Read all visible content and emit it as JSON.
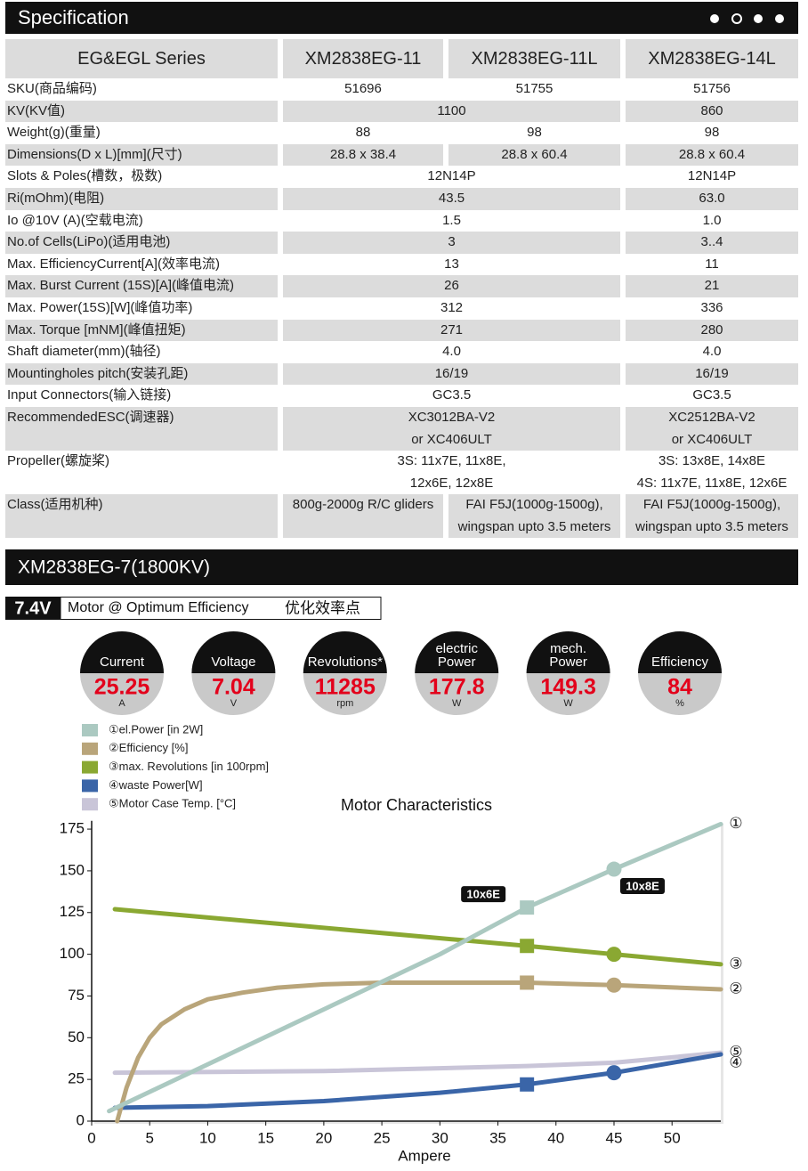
{
  "header": {
    "title": "Specification"
  },
  "table": {
    "header": [
      "EG&EGL Series",
      "XM2838EG-11",
      "XM2838EG-11L",
      "XM2838EG-14L"
    ],
    "rows": [
      {
        "label": "SKU(商品编码)",
        "cells": [
          {
            "lines": [
              "51696"
            ]
          },
          {
            "lines": [
              "51755"
            ]
          },
          {
            "lines": [
              "51756"
            ]
          }
        ]
      },
      {
        "label": "KV(KV值)",
        "cells": [
          {
            "lines": [
              "1100"
            ],
            "span": 2
          },
          {
            "lines": [
              "860"
            ]
          }
        ]
      },
      {
        "label": "Weight(g)(重量)",
        "cells": [
          {
            "lines": [
              "88"
            ]
          },
          {
            "lines": [
              "98"
            ]
          },
          {
            "lines": [
              "98"
            ]
          }
        ]
      },
      {
        "label": "Dimensions(D x L)[mm](尺寸)",
        "cells": [
          {
            "lines": [
              "28.8 x 38.4"
            ]
          },
          {
            "lines": [
              "28.8 x 60.4"
            ]
          },
          {
            "lines": [
              "28.8 x 60.4"
            ]
          }
        ]
      },
      {
        "label": "Slots & Poles(槽数，极数)",
        "cells": [
          {
            "lines": [
              "12N14P"
            ],
            "span": 2
          },
          {
            "lines": [
              "12N14P"
            ]
          }
        ]
      },
      {
        "label": "Ri(mOhm)(电阻)",
        "cells": [
          {
            "lines": [
              "43.5"
            ],
            "span": 2
          },
          {
            "lines": [
              "63.0"
            ]
          }
        ]
      },
      {
        "label": "Io @10V (A)(空载电流)",
        "cells": [
          {
            "lines": [
              "1.5"
            ],
            "span": 2
          },
          {
            "lines": [
              "1.0"
            ]
          }
        ]
      },
      {
        "label": "No.of Cells(LiPo)(适用电池)",
        "cells": [
          {
            "lines": [
              "3"
            ],
            "span": 2
          },
          {
            "lines": [
              "3..4"
            ]
          }
        ]
      },
      {
        "label": "Max. EfficiencyCurrent[A](效率电流)",
        "cells": [
          {
            "lines": [
              "13"
            ],
            "span": 2
          },
          {
            "lines": [
              "11"
            ]
          }
        ]
      },
      {
        "label": "Max. Burst Current (15S)[A](峰值电流)",
        "cells": [
          {
            "lines": [
              "26"
            ],
            "span": 2
          },
          {
            "lines": [
              "21"
            ]
          }
        ]
      },
      {
        "label": "Max. Power(15S)[W](峰值功率)",
        "cells": [
          {
            "lines": [
              "312"
            ],
            "span": 2
          },
          {
            "lines": [
              "336"
            ]
          }
        ]
      },
      {
        "label": "Max. Torque [mNM](峰值扭矩)",
        "cells": [
          {
            "lines": [
              "271"
            ],
            "span": 2
          },
          {
            "lines": [
              "280"
            ]
          }
        ]
      },
      {
        "label": "Shaft diameter(mm)(轴径)",
        "cells": [
          {
            "lines": [
              "4.0"
            ],
            "span": 2
          },
          {
            "lines": [
              "4.0"
            ]
          }
        ]
      },
      {
        "label": "Mountingholes pitch(安装孔距)",
        "cells": [
          {
            "lines": [
              "16/19"
            ],
            "span": 2
          },
          {
            "lines": [
              "16/19"
            ]
          }
        ]
      },
      {
        "label": "Input Connectors(输入链接)",
        "cells": [
          {
            "lines": [
              "GC3.5"
            ],
            "span": 2
          },
          {
            "lines": [
              "GC3.5"
            ]
          }
        ]
      },
      {
        "label": "RecommendedESC(调速器)",
        "cells": [
          {
            "lines": [
              "XC3012BA-V2",
              "or XC406ULT"
            ],
            "span": 2
          },
          {
            "lines": [
              "XC2512BA-V2",
              "or XC406ULT"
            ]
          }
        ]
      },
      {
        "label": "Propeller(螺旋桨)",
        "cells": [
          {
            "lines": [
              "3S: 11x7E, 11x8E,",
              "12x6E, 12x8E"
            ],
            "span": 2
          },
          {
            "lines": [
              "3S: 13x8E, 14x8E",
              "4S: 11x7E, 11x8E, 12x6E"
            ]
          }
        ]
      },
      {
        "label": "Class(适用机种)",
        "cells": [
          {
            "lines": [
              "800g-2000g R/C gliders"
            ]
          },
          {
            "lines": [
              "FAI F5J(1000g-1500g),",
              "wingspan upto 3.5 meters"
            ]
          },
          {
            "lines": [
              "FAI F5J(1000g-1500g),",
              "wingspan upto 3.5 meters"
            ]
          }
        ]
      }
    ]
  },
  "section": {
    "title": "XM2838EG-7(1800KV)",
    "voltage": "7.4V",
    "subtitle": "Motor @ Optimum Efficiency",
    "subtitle_cn": "优化效率点"
  },
  "gauges": [
    {
      "label": [
        "Current"
      ],
      "value": "25.25",
      "unit": "A"
    },
    {
      "label": [
        "Voltage"
      ],
      "value": "7.04",
      "unit": "V"
    },
    {
      "label": [
        "Revolutions*"
      ],
      "value": "11285",
      "unit": "rpm"
    },
    {
      "label": [
        "electric",
        "Power"
      ],
      "value": "177.8",
      "unit": "W"
    },
    {
      "label": [
        "mech.",
        "Power"
      ],
      "value": "149.3",
      "unit": "W"
    },
    {
      "label": [
        "Efficiency"
      ],
      "value": "84",
      "unit": "%"
    }
  ],
  "chart_data": {
    "type": "line",
    "title": "Motor Characteristics",
    "x_label": "Ampere",
    "xlim": [
      0,
      54.2
    ],
    "xticks": [
      0,
      5,
      10,
      15,
      20,
      25,
      30,
      35,
      40,
      45,
      50
    ],
    "ylim": [
      0,
      180
    ],
    "yticks": [
      0,
      25,
      50,
      75,
      100,
      125,
      150,
      175
    ],
    "series": [
      {
        "name": "①el.Power [in 2W]",
        "end_label": "①",
        "color": "#abc9c1",
        "x": [
          1.5,
          10,
          20,
          30,
          37.5,
          45,
          54.2
        ],
        "values": [
          6,
          34,
          67,
          100,
          128,
          151,
          178
        ]
      },
      {
        "name": "②Efficiency [%]",
        "end_label": "②",
        "color": "#b9a57a",
        "x": [
          2.2,
          3,
          4,
          5,
          6,
          8,
          10,
          13,
          16,
          20,
          25,
          30,
          37.5,
          45,
          54.2
        ],
        "values": [
          0,
          20,
          38,
          50,
          58,
          67,
          73,
          77,
          80,
          82,
          83,
          83,
          83,
          81.5,
          79
        ]
      },
      {
        "name": "③max. Revolutions [in 100rpm]",
        "end_label": "③",
        "color": "#8aa832",
        "x": [
          2,
          37.5,
          45,
          54.2
        ],
        "values": [
          127,
          105,
          100,
          94
        ]
      },
      {
        "name": "④waste Power[W]",
        "end_label": "④",
        "color": "#3a65a8",
        "x": [
          2,
          10,
          20,
          30,
          37.5,
          45,
          54.2
        ],
        "values": [
          8,
          9,
          12,
          17,
          22,
          29,
          40
        ]
      },
      {
        "name": "⑤Motor Case Temp. [°C]",
        "end_label": "⑤",
        "color": "#c9c5d8",
        "x": [
          2,
          20,
          37.5,
          45,
          54.2
        ],
        "values": [
          29,
          30,
          33,
          35,
          41
        ]
      }
    ],
    "annotations": [
      {
        "text": "10x6E",
        "x": 37.5,
        "marker": "square"
      },
      {
        "text": "10x8E",
        "x": 45,
        "marker": "circle"
      }
    ]
  }
}
